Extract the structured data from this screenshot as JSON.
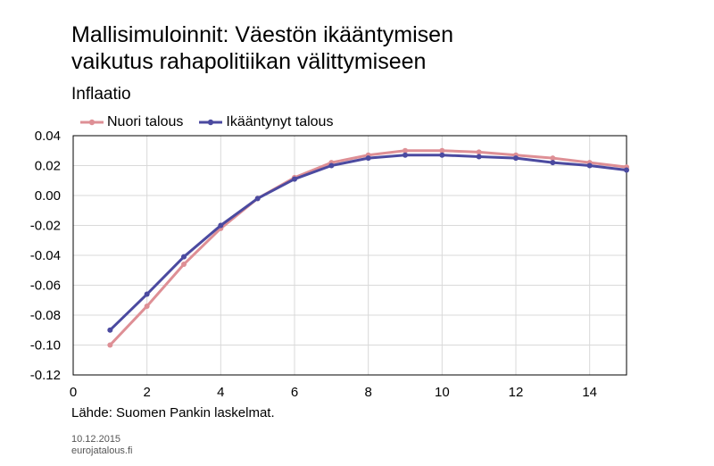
{
  "title_line1": "Mallisimuloinnit: Väestön ikääntymisen",
  "title_line2": "vaikutus rahapolitiikan välittymiseen",
  "subtitle": "Inflaatio",
  "source": "Lähde: Suomen Pankin laskelmat.",
  "footer_date": "10.12.2015",
  "footer_site": "eurojatalous.fi",
  "chart_data": {
    "type": "line",
    "title": "Inflaatio",
    "xlim": [
      0,
      15
    ],
    "ylim": [
      -0.12,
      0.04
    ],
    "xticks": [
      0,
      2,
      4,
      6,
      8,
      10,
      12,
      14
    ],
    "yticks": [
      -0.12,
      -0.1,
      -0.08,
      -0.06,
      -0.04,
      -0.02,
      0.0,
      0.02,
      0.04
    ],
    "ytick_labels": [
      "-0.12",
      "-0.10",
      "-0.08",
      "-0.06",
      "-0.04",
      "-0.02",
      "0.00",
      "0.02",
      "0.04"
    ],
    "xtick_labels": [
      "0",
      "2",
      "4",
      "6",
      "8",
      "10",
      "12",
      "14"
    ],
    "grid": true,
    "legend_position": "top-left",
    "x": [
      1,
      2,
      3,
      4,
      5,
      6,
      7,
      8,
      9,
      10,
      11,
      12,
      13,
      14,
      15
    ],
    "series": [
      {
        "name": "Nuori talous",
        "color": "#de8f95",
        "values": [
          -0.1,
          -0.074,
          -0.046,
          -0.022,
          -0.002,
          0.012,
          0.022,
          0.027,
          0.03,
          0.03,
          0.029,
          0.027,
          0.025,
          0.022,
          0.019
        ]
      },
      {
        "name": "Ikääntynyt talous",
        "color": "#4b4aa0",
        "values": [
          -0.09,
          -0.066,
          -0.041,
          -0.02,
          -0.002,
          0.011,
          0.02,
          0.025,
          0.027,
          0.027,
          0.026,
          0.025,
          0.022,
          0.02,
          0.017
        ]
      }
    ]
  }
}
